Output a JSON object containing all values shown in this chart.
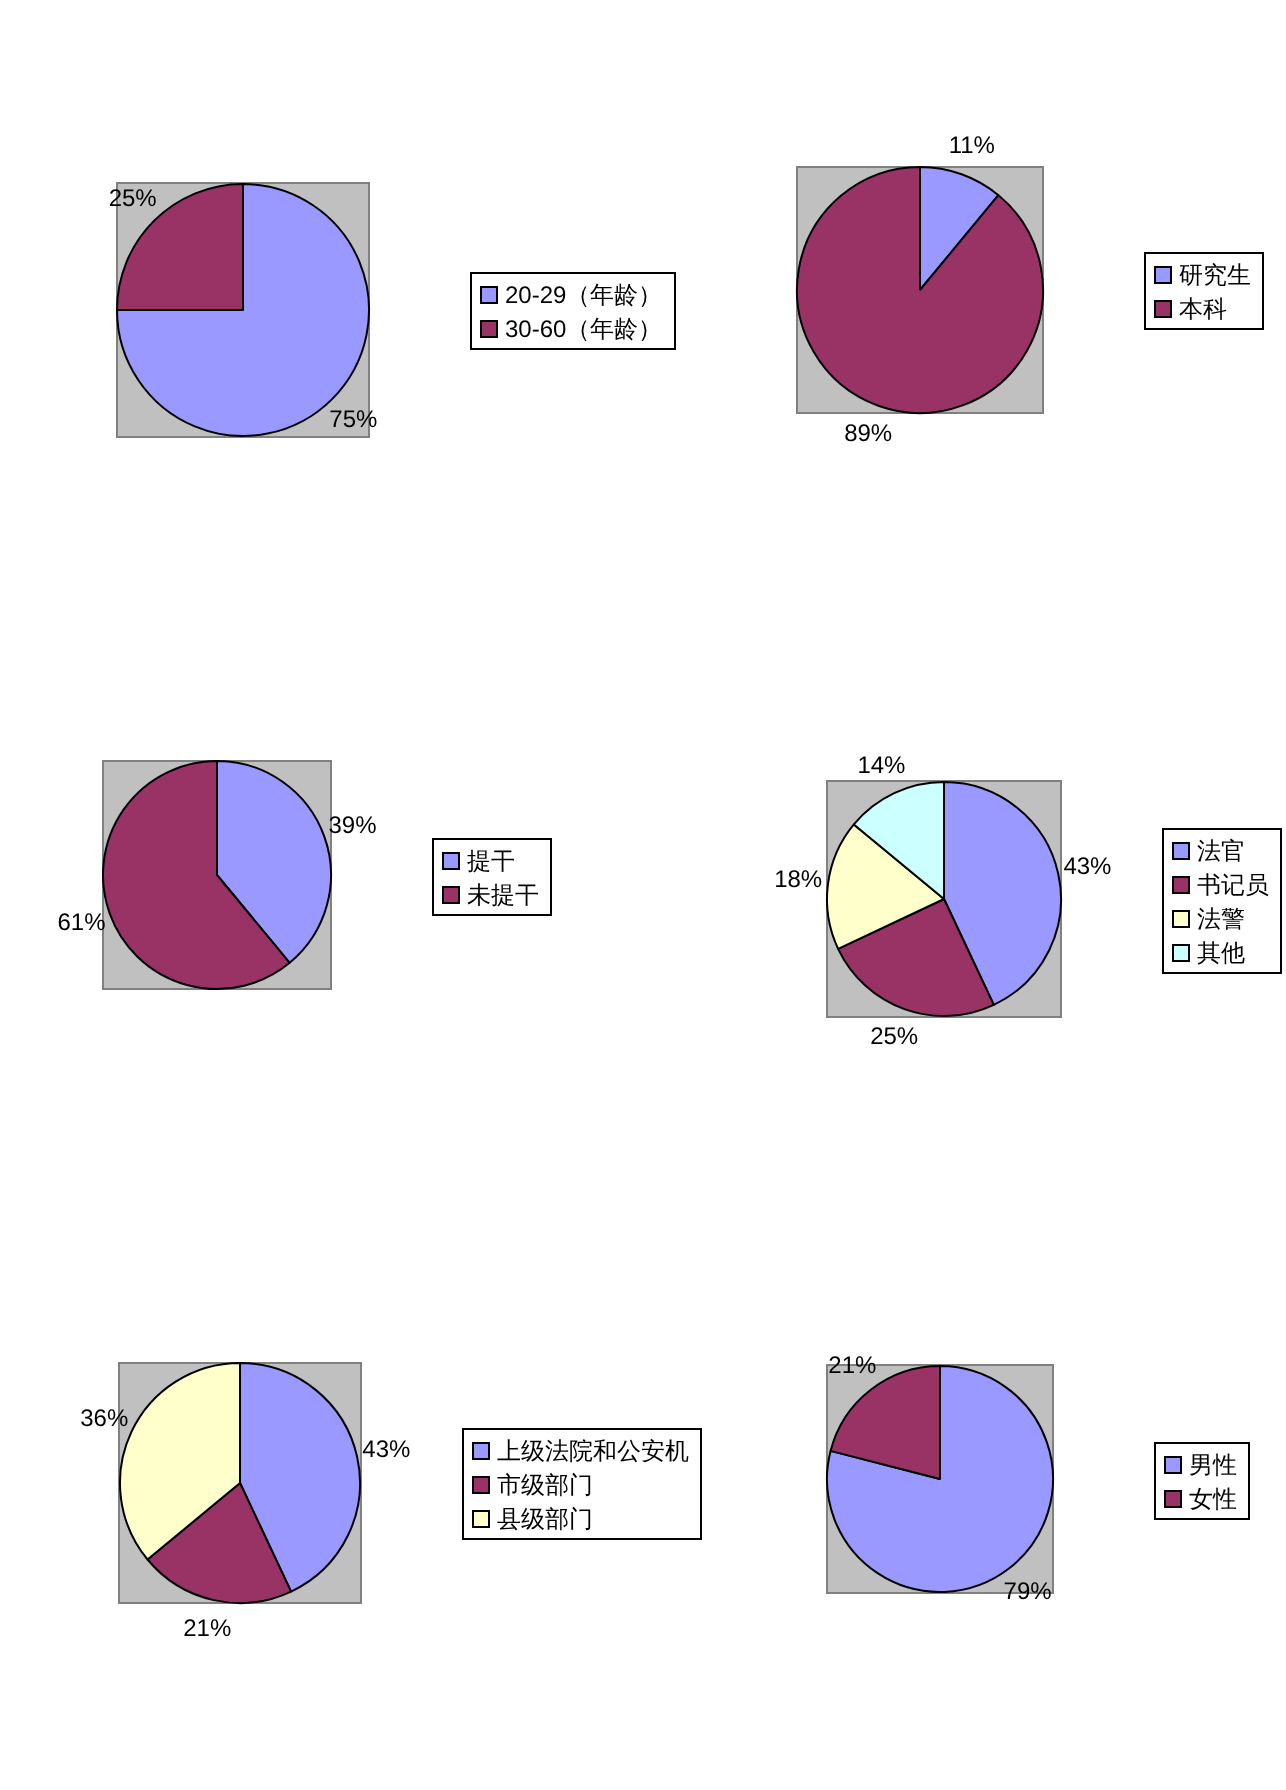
{
  "chart_data": [
    {
      "type": "pie",
      "categories": [
        "20-29（年龄）",
        "30-60（年龄）"
      ],
      "values": [
        75,
        25
      ],
      "colors": [
        "#9999ff",
        "#993366"
      ],
      "value_labels": [
        "75%",
        "25%"
      ],
      "legend": "right"
    },
    {
      "type": "pie",
      "categories": [
        "研究生",
        "本科"
      ],
      "values": [
        11,
        89
      ],
      "colors": [
        "#9999ff",
        "#993366"
      ],
      "value_labels": [
        "11%",
        "89%"
      ],
      "legend": "right"
    },
    {
      "type": "pie",
      "categories": [
        "提干",
        "未提干"
      ],
      "values": [
        39,
        61
      ],
      "colors": [
        "#9999ff",
        "#993366"
      ],
      "value_labels": [
        "39%",
        "61%"
      ],
      "legend": "right"
    },
    {
      "type": "pie",
      "categories": [
        "法官",
        "书记员",
        "法警",
        "其他"
      ],
      "values": [
        43,
        25,
        18,
        14
      ],
      "colors": [
        "#9999ff",
        "#993366",
        "#ffffcc",
        "#ccffff"
      ],
      "value_labels": [
        "43%",
        "25%",
        "18%",
        "14%"
      ],
      "legend": "right"
    },
    {
      "type": "pie",
      "categories": [
        "上级法院和公安机",
        "市级部门",
        "县级部门"
      ],
      "values": [
        43,
        21,
        36
      ],
      "colors": [
        "#9999ff",
        "#993366",
        "#ffffcc"
      ],
      "value_labels": [
        "43%",
        "21%",
        "36%"
      ],
      "legend": "right"
    },
    {
      "type": "pie",
      "categories": [
        "男性",
        "女性"
      ],
      "values": [
        79,
        21
      ],
      "colors": [
        "#9999ff",
        "#993366"
      ],
      "value_labels": [
        "79%",
        "21%"
      ],
      "legend": "right"
    }
  ]
}
